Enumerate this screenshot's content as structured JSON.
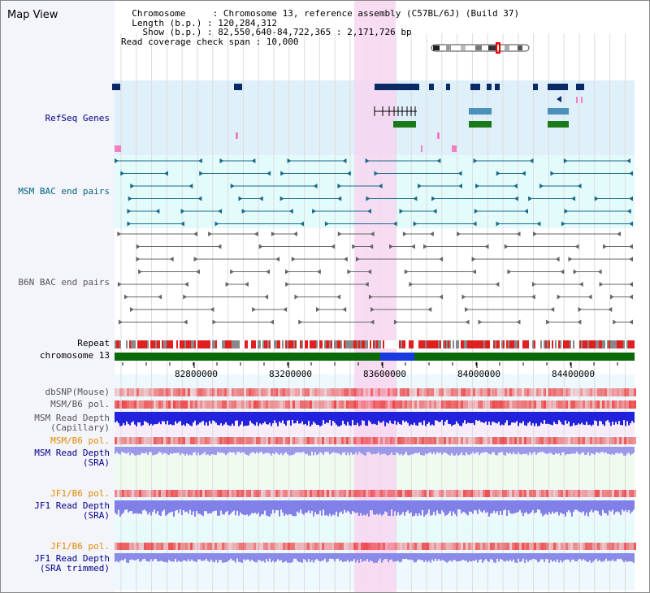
{
  "app": {
    "title": "Map View"
  },
  "info": {
    "lines": [
      "  Chromosome     : Chromosome 13, reference assembly (C57BL/6J) (Build 37)",
      "  Length (b.p.) : 120,284,312",
      "    Show (b.p.) : 82,550,640-84,722,365 : 2,171,726 bp",
      "Read coverage check span : 10,000"
    ]
  },
  "tracks": {
    "refseq": {
      "label": "RefSeq Genes"
    },
    "msm_bac": {
      "label": "MSM BAC end pairs"
    },
    "b6n_bac": {
      "label": "B6N BAC end pairs"
    },
    "repeat": {
      "label": "Repeat"
    },
    "chromosome": {
      "label": "chromosome 13"
    },
    "dbsnp": {
      "label": "dbSNP(Mouse)"
    },
    "msm_b6_pol_1": {
      "label": "MSM/B6 pol."
    },
    "msm_depth_cap": {
      "label": "MSM Read Depth\n(Capillary)"
    },
    "msm_b6_pol_2": {
      "label": "MSM/B6 pol."
    },
    "msm_depth_sra": {
      "label": "MSM Read Depth\n(SRA)"
    },
    "jf1_b6_pol_1": {
      "label": "JF1/B6 pol."
    },
    "jf1_depth_sra": {
      "label": "JF1 Read Depth\n(SRA)"
    },
    "jf1_b6_pol_2": {
      "label": "JF1/B6 pol."
    },
    "jf1_depth_trim": {
      "label": "JF1 Read Depth\n(SRA trimmed)"
    }
  },
  "axis": {
    "ticks": [
      "82800000",
      "83200000",
      "83600000",
      "84000000",
      "84400000"
    ]
  },
  "colors": {
    "refseq_label": "#00008b",
    "msm_label": "#006080",
    "b6n_label": "#555555",
    "pol_label_orange": "#e08a00",
    "depth_label_blue": "#00008b",
    "highlight": "#f7d6f0"
  }
}
